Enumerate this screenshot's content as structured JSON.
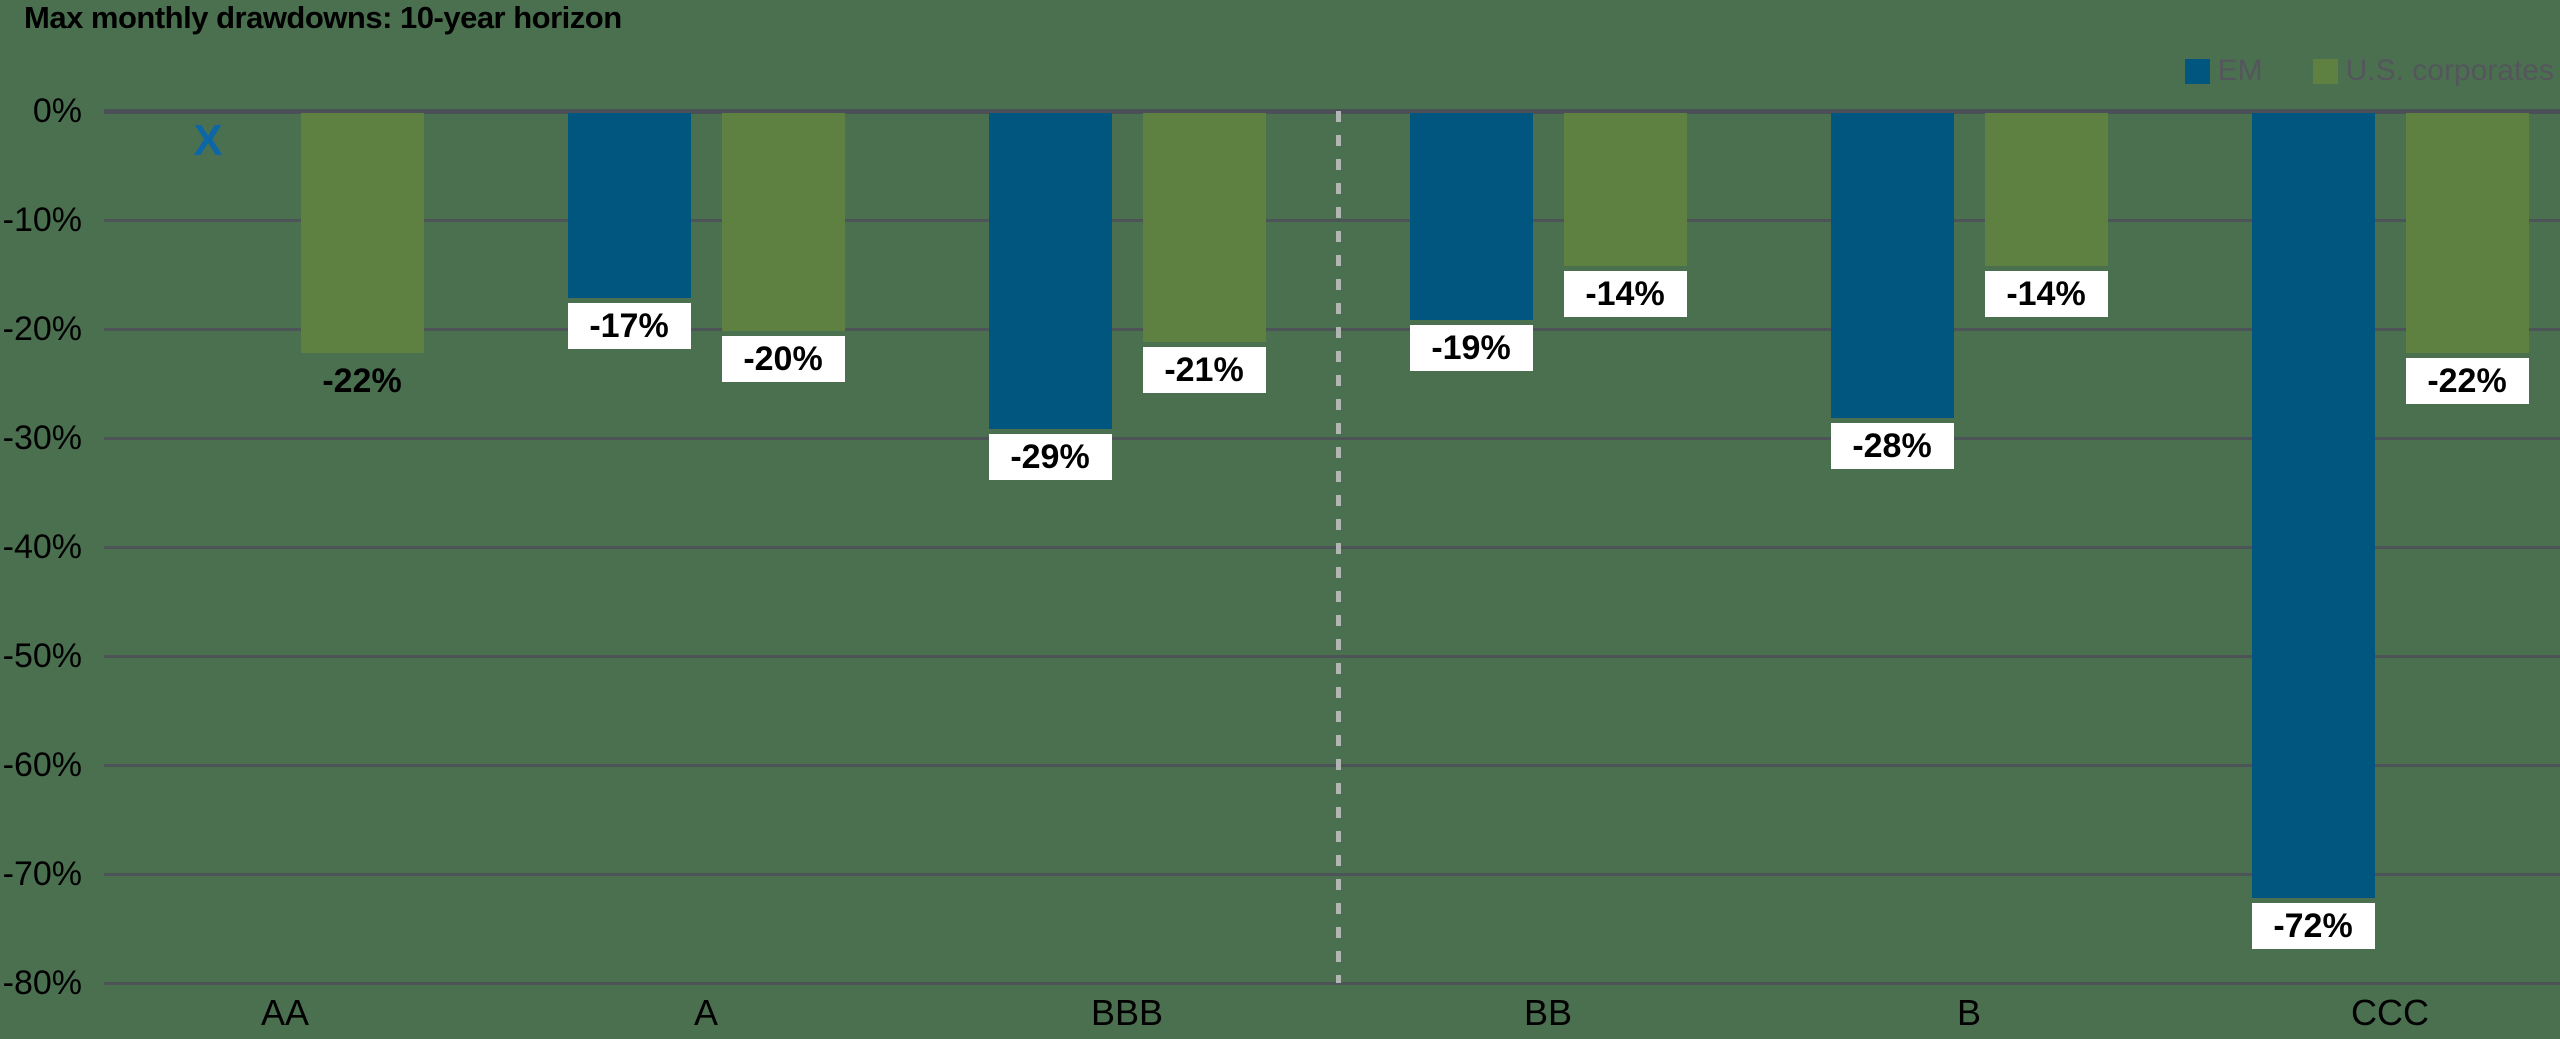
{
  "header": {
    "title": "Max monthly drawdowns: 10-year horizon"
  },
  "legend": {
    "items": [
      {
        "label": "EM",
        "color": "#00567e"
      },
      {
        "label": "U.S. corporates",
        "color": "#5e8040"
      }
    ]
  },
  "colors": {
    "background": "#4a7050",
    "gridline": "#4d5458",
    "axis_line": "#4a5055",
    "label_box": "#ffffff",
    "text": "#000000",
    "legend_text": "#54565c",
    "divider": "#b2b6b2",
    "marker_x": "#0d67a6"
  },
  "chart_data": {
    "type": "bar",
    "title": "Max monthly drawdowns: 10-year horizon",
    "categories": [
      "AA",
      "A",
      "BBB",
      "BB",
      "B",
      "CCC"
    ],
    "series": [
      {
        "name": "EM",
        "color": "#00567e",
        "values": [
          null,
          -17,
          -29,
          -19,
          -28,
          -72
        ],
        "data_labels": [
          "",
          "-17%",
          "-29%",
          "-19%",
          "-28%",
          "-72%"
        ],
        "label_boxed": [
          false,
          true,
          true,
          true,
          true,
          true
        ],
        "null_marker": {
          "category": "AA",
          "symbol": "X",
          "color": "#0d67a6"
        }
      },
      {
        "name": "U.S. corporates",
        "color": "#5e8040",
        "values": [
          -22,
          -20,
          -21,
          -14,
          -14,
          -22
        ],
        "data_labels": [
          "-22%",
          "-20%",
          "-21%",
          "-14%",
          "-14%",
          "-22%"
        ],
        "label_boxed": [
          false,
          true,
          true,
          true,
          true,
          true
        ]
      }
    ],
    "ylim": [
      -80,
      0
    ],
    "ytick_labels": [
      "0%",
      "-10%",
      "-20%",
      "-30%",
      "-40%",
      "-50%",
      "-60%",
      "-70%",
      "-80%"
    ],
    "grid": "horizontal",
    "legend_position": "top-right",
    "divider": {
      "between": [
        "BBB",
        "BB"
      ],
      "style": "dashed",
      "color": "#b2b6b2"
    }
  }
}
